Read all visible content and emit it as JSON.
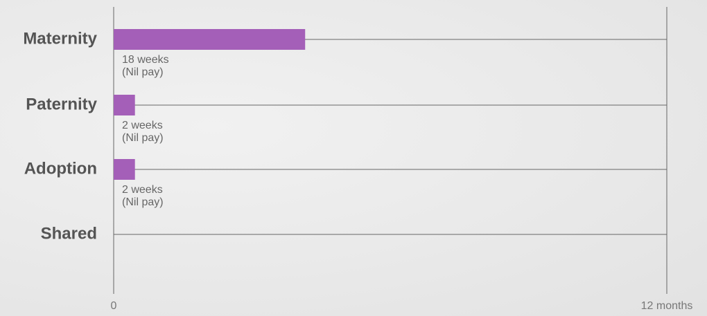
{
  "chart_data": {
    "type": "barh",
    "categories": [
      "Maternity",
      "Paternity",
      "Adoption",
      "Shared"
    ],
    "values": [
      18,
      2,
      2,
      null
    ],
    "value_labels": [
      "18 weeks",
      "2 weeks",
      "2 weeks",
      null
    ],
    "value_notes": [
      "(Nil pay)",
      "(Nil pay)",
      "(Nil pay)",
      null
    ],
    "color": "#a45fb8",
    "xlim": [
      0,
      52
    ],
    "xticks": [
      0,
      {
        "value": 52,
        "label": "12 months"
      }
    ],
    "grid": true
  }
}
